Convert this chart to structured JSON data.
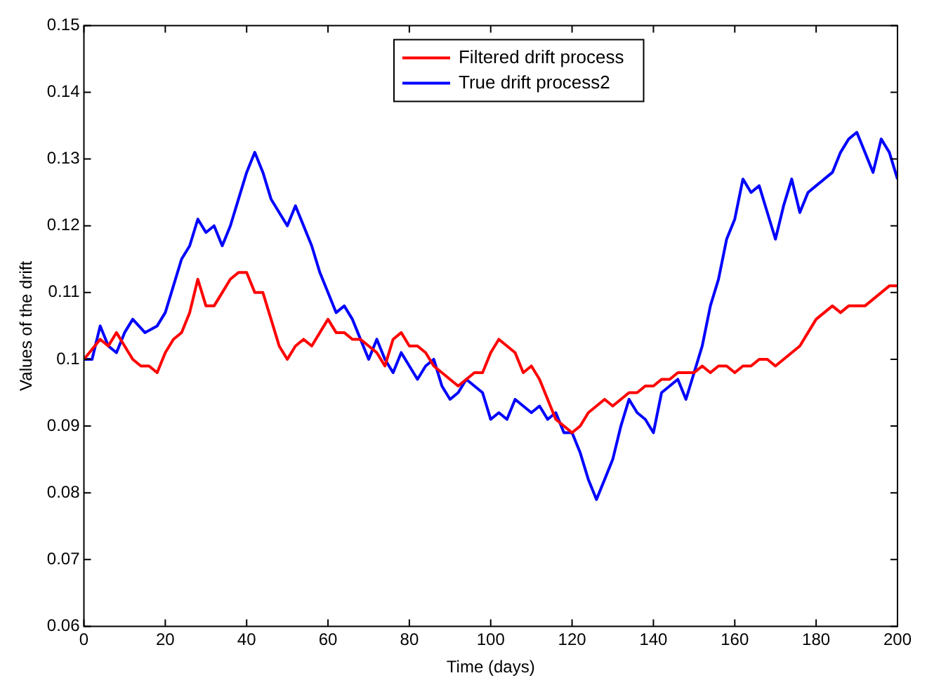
{
  "chart_data": {
    "type": "line",
    "xlabel": "Time (days)",
    "ylabel": "Values of the drift",
    "xlim": [
      0,
      200
    ],
    "xticks": [
      0,
      20,
      40,
      60,
      80,
      100,
      120,
      140,
      160,
      180,
      200
    ],
    "ylim": [
      0.06,
      0.15
    ],
    "yticks": [
      0.06,
      0.07,
      0.08,
      0.09,
      0.1,
      0.11,
      0.12,
      0.13,
      0.14,
      0.15
    ],
    "legend": "top",
    "grid": false,
    "marker": "none",
    "line_style": "solid",
    "series": [
      {
        "name": "Filtered drift process",
        "color": "#ff0000",
        "x": [
          0,
          4,
          6,
          8,
          10,
          12,
          14,
          16,
          18,
          20,
          22,
          24,
          26,
          28,
          30,
          32,
          34,
          36,
          38,
          40,
          42,
          44,
          46,
          48,
          50,
          52,
          54,
          56,
          58,
          60,
          62,
          64,
          66,
          68,
          70,
          72,
          74,
          76,
          78,
          80,
          82,
          84,
          86,
          88,
          90,
          92,
          94,
          96,
          98,
          100,
          102,
          104,
          106,
          108,
          110,
          112,
          114,
          116,
          118,
          120,
          122,
          124,
          126,
          128,
          130,
          132,
          134,
          136,
          138,
          140,
          142,
          144,
          146,
          148,
          150,
          152,
          154,
          156,
          158,
          160,
          162,
          164,
          166,
          168,
          170,
          172,
          174,
          176,
          178,
          180,
          182,
          184,
          186,
          188,
          190,
          192,
          194,
          196,
          198,
          200
        ],
        "values": [
          0.1,
          0.103,
          0.102,
          0.104,
          0.102,
          0.1,
          0.099,
          0.099,
          0.098,
          0.101,
          0.103,
          0.104,
          0.107,
          0.112,
          0.108,
          0.108,
          0.11,
          0.112,
          0.113,
          0.113,
          0.11,
          0.11,
          0.106,
          0.102,
          0.1,
          0.102,
          0.103,
          0.102,
          0.104,
          0.106,
          0.104,
          0.104,
          0.103,
          0.103,
          0.102,
          0.101,
          0.099,
          0.103,
          0.104,
          0.102,
          0.102,
          0.101,
          0.099,
          0.098,
          0.097,
          0.096,
          0.097,
          0.098,
          0.098,
          0.101,
          0.103,
          0.102,
          0.101,
          0.098,
          0.099,
          0.097,
          0.094,
          0.091,
          0.09,
          0.089,
          0.09,
          0.092,
          0.093,
          0.094,
          0.093,
          0.094,
          0.095,
          0.095,
          0.096,
          0.096,
          0.097,
          0.097,
          0.098,
          0.098,
          0.098,
          0.099,
          0.098,
          0.099,
          0.099,
          0.098,
          0.099,
          0.099,
          0.1,
          0.1,
          0.099,
          0.1,
          0.101,
          0.102,
          0.104,
          0.106,
          0.107,
          0.108,
          0.107,
          0.108,
          0.108,
          0.108,
          0.109,
          0.11,
          0.111,
          0.111
        ]
      },
      {
        "name": "True drift process2",
        "color": "#0000ff",
        "x": [
          0,
          2,
          4,
          6,
          8,
          10,
          12,
          15,
          18,
          20,
          22,
          24,
          26,
          28,
          30,
          32,
          34,
          36,
          38,
          40,
          42,
          44,
          46,
          48,
          50,
          52,
          54,
          56,
          58,
          60,
          62,
          64,
          66,
          68,
          70,
          72,
          74,
          76,
          78,
          80,
          82,
          84,
          86,
          88,
          90,
          92,
          94,
          96,
          98,
          100,
          102,
          104,
          106,
          108,
          110,
          112,
          114,
          116,
          118,
          120,
          122,
          124,
          126,
          128,
          130,
          132,
          134,
          136,
          138,
          140,
          142,
          144,
          146,
          148,
          150,
          152,
          154,
          156,
          158,
          160,
          162,
          164,
          166,
          168,
          170,
          172,
          174,
          176,
          178,
          180,
          182,
          184,
          186,
          188,
          190,
          192,
          194,
          196,
          198,
          200
        ],
        "values": [
          0.1,
          0.1,
          0.105,
          0.102,
          0.101,
          0.104,
          0.106,
          0.104,
          0.105,
          0.107,
          0.111,
          0.115,
          0.117,
          0.121,
          0.119,
          0.12,
          0.117,
          0.12,
          0.124,
          0.128,
          0.131,
          0.128,
          0.124,
          0.122,
          0.12,
          0.123,
          0.12,
          0.117,
          0.113,
          0.11,
          0.107,
          0.108,
          0.106,
          0.103,
          0.1,
          0.103,
          0.1,
          0.098,
          0.101,
          0.099,
          0.097,
          0.099,
          0.1,
          0.096,
          0.094,
          0.095,
          0.097,
          0.096,
          0.095,
          0.091,
          0.092,
          0.091,
          0.094,
          0.093,
          0.092,
          0.093,
          0.091,
          0.092,
          0.089,
          0.089,
          0.086,
          0.082,
          0.079,
          0.082,
          0.085,
          0.09,
          0.094,
          0.092,
          0.091,
          0.089,
          0.095,
          0.096,
          0.097,
          0.094,
          0.098,
          0.102,
          0.108,
          0.112,
          0.118,
          0.121,
          0.127,
          0.125,
          0.126,
          0.122,
          0.118,
          0.123,
          0.127,
          0.122,
          0.125,
          0.126,
          0.127,
          0.128,
          0.131,
          0.133,
          0.134,
          0.131,
          0.128,
          0.133,
          0.131,
          0.127
        ]
      }
    ]
  }
}
